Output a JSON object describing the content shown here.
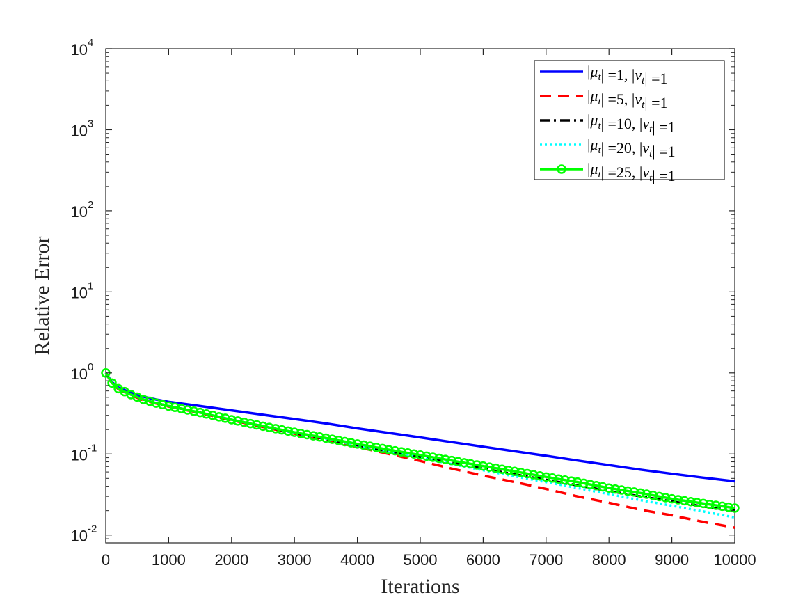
{
  "chart_data": {
    "type": "line",
    "xlabel": "Iterations",
    "ylabel": "Relative Error",
    "xlim": [
      0,
      10000
    ],
    "ylim": [
      0.008,
      10000
    ],
    "yscale": "log",
    "xticks": [
      0,
      1000,
      2000,
      3000,
      4000,
      5000,
      6000,
      7000,
      8000,
      9000,
      10000
    ],
    "xtick_labels": [
      "0",
      "1000",
      "2000",
      "3000",
      "4000",
      "5000",
      "6000",
      "7000",
      "8000",
      "9000",
      "10000"
    ],
    "yticks": [
      0.01,
      0.1,
      1,
      10,
      100,
      1000,
      10000
    ],
    "ytick_labels": [
      {
        "base": "10",
        "exp": "-2"
      },
      {
        "base": "10",
        "exp": "-1"
      },
      {
        "base": "10",
        "exp": "0"
      },
      {
        "base": "10",
        "exp": "1"
      },
      {
        "base": "10",
        "exp": "2"
      },
      {
        "base": "10",
        "exp": "3"
      },
      {
        "base": "10",
        "exp": "4"
      }
    ],
    "grid": false,
    "legend_position": "top-right",
    "series": [
      {
        "name": "|μt| =1, |νt| =1",
        "legend": {
          "mu": "1",
          "nu": "1"
        },
        "color": "#0000ff",
        "style": "solid",
        "x": [
          0,
          100,
          200,
          400,
          600,
          800,
          1000,
          1500,
          2000,
          2500,
          3000,
          3500,
          4000,
          4500,
          5000,
          5500,
          6000,
          6500,
          7000,
          7500,
          8000,
          8500,
          9000,
          9500,
          10000
        ],
        "y": [
          1.0,
          0.77,
          0.66,
          0.57,
          0.51,
          0.47,
          0.44,
          0.39,
          0.345,
          0.305,
          0.27,
          0.238,
          0.207,
          0.182,
          0.16,
          0.14,
          0.123,
          0.108,
          0.095,
          0.083,
          0.073,
          0.064,
          0.057,
          0.051,
          0.046
        ]
      },
      {
        "name": "|μt| =5, |νt| =1",
        "legend": {
          "mu": "5",
          "nu": "1"
        },
        "color": "#ff0000",
        "style": "dashed",
        "x": [
          0,
          100,
          200,
          400,
          600,
          800,
          1000,
          1500,
          2000,
          2500,
          3000,
          3500,
          4000,
          4500,
          5000,
          5500,
          6000,
          6500,
          7000,
          7500,
          8000,
          8500,
          9000,
          9500,
          10000
        ],
        "y": [
          1.0,
          0.74,
          0.63,
          0.53,
          0.46,
          0.42,
          0.385,
          0.32,
          0.26,
          0.215,
          0.178,
          0.147,
          0.122,
          0.1,
          0.082,
          0.066,
          0.054,
          0.045,
          0.037,
          0.03,
          0.025,
          0.0205,
          0.0175,
          0.0145,
          0.0123
        ]
      },
      {
        "name": "|μt| =10, |νt| =1",
        "legend": {
          "mu": "10",
          "nu": "1"
        },
        "color": "#000000",
        "style": "dashdot",
        "x": [
          0,
          100,
          200,
          400,
          600,
          800,
          1000,
          1500,
          2000,
          2500,
          3000,
          3500,
          4000,
          4500,
          5000,
          5500,
          6000,
          6500,
          7000,
          7500,
          8000,
          8500,
          9000,
          9500,
          10000
        ],
        "y": [
          1.0,
          0.75,
          0.64,
          0.54,
          0.47,
          0.425,
          0.39,
          0.325,
          0.265,
          0.22,
          0.182,
          0.153,
          0.128,
          0.108,
          0.092,
          0.078,
          0.066,
          0.056,
          0.048,
          0.041,
          0.035,
          0.03,
          0.026,
          0.0225,
          0.02
        ]
      },
      {
        "name": "|μt| =20, |νt| =1",
        "legend": {
          "mu": "20",
          "nu": "1"
        },
        "color": "#00ffff",
        "style": "dotted",
        "x": [
          0,
          100,
          200,
          400,
          600,
          800,
          1000,
          1500,
          2000,
          2500,
          3000,
          3500,
          4000,
          4500,
          5000,
          5500,
          6000,
          6500,
          7000,
          7500,
          8000,
          8500,
          9000,
          9500,
          10000
        ],
        "y": [
          1.0,
          0.75,
          0.64,
          0.54,
          0.47,
          0.425,
          0.39,
          0.325,
          0.265,
          0.22,
          0.183,
          0.154,
          0.129,
          0.108,
          0.09,
          0.075,
          0.063,
          0.053,
          0.045,
          0.038,
          0.032,
          0.027,
          0.023,
          0.0195,
          0.0165
        ]
      },
      {
        "name": "|μt| =25, |νt| =1",
        "legend": {
          "mu": "25",
          "nu": "1"
        },
        "color": "#00ff00",
        "style": "solid-circle",
        "x": [
          0,
          100,
          200,
          400,
          600,
          800,
          1000,
          1500,
          2000,
          2500,
          3000,
          3500,
          4000,
          4500,
          5000,
          5500,
          6000,
          6500,
          7000,
          7500,
          8000,
          8500,
          9000,
          9500,
          10000
        ],
        "y": [
          1.0,
          0.75,
          0.64,
          0.54,
          0.47,
          0.425,
          0.39,
          0.325,
          0.265,
          0.22,
          0.185,
          0.157,
          0.133,
          0.113,
          0.097,
          0.083,
          0.071,
          0.061,
          0.052,
          0.045,
          0.038,
          0.033,
          0.028,
          0.0245,
          0.0215
        ]
      }
    ]
  }
}
